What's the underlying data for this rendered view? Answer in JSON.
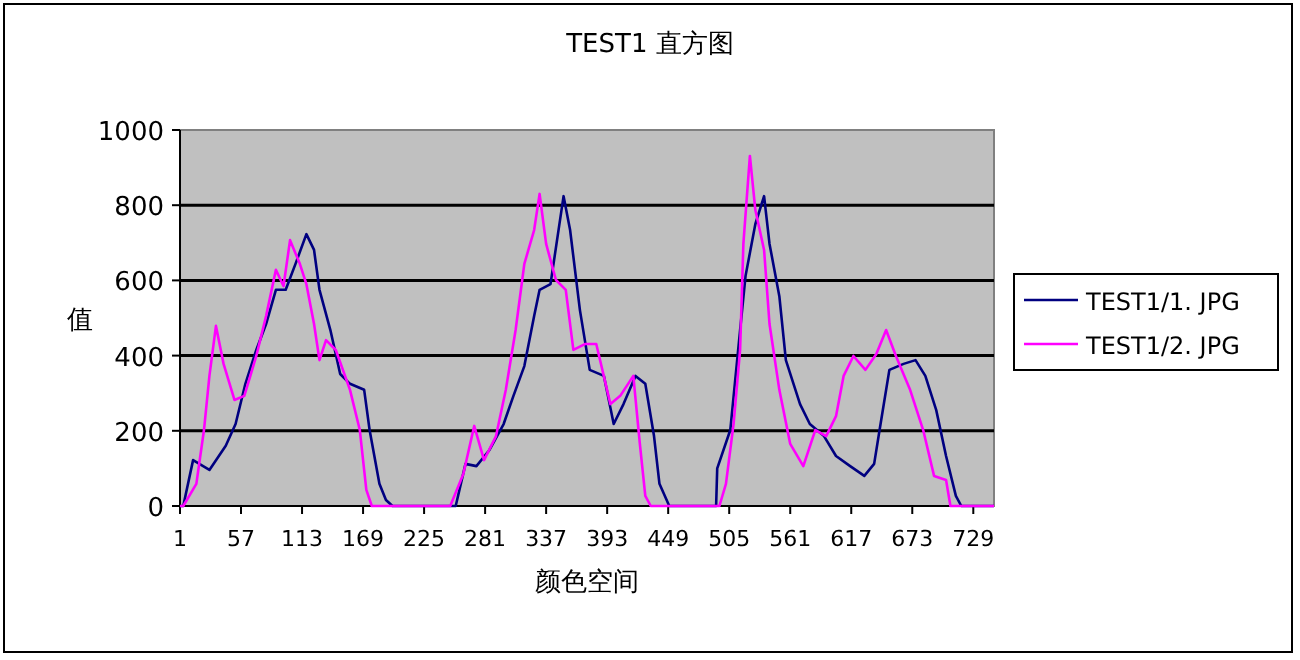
{
  "chart_data": {
    "type": "line",
    "title": "TEST1 直方图",
    "xlabel": "颜色空间",
    "ylabel": "值",
    "xlim": [
      1,
      748
    ],
    "xticks": [
      1,
      57,
      113,
      169,
      225,
      281,
      337,
      393,
      449,
      505,
      561,
      617,
      673,
      729
    ],
    "ylim": [
      0,
      1000
    ],
    "yticks": [
      0,
      200,
      400,
      600,
      800,
      1000
    ],
    "grid": "y",
    "legend": "right",
    "marker": "none",
    "line_style": "solid",
    "series": [
      {
        "name": "TEST1/1. JPG",
        "color": "#000080",
        "x": [
          1,
          4,
          13,
          28,
          43,
          52,
          61,
          71,
          80,
          89,
          98,
          107,
          117,
          124,
          129,
          139,
          148,
          157,
          170,
          175,
          184,
          190,
          196,
          254,
          263,
          273,
          285,
          298,
          307,
          317,
          326,
          331,
          341,
          353,
          359,
          368,
          377,
          390,
          399,
          408,
          419,
          428,
          436,
          441,
          450,
          493,
          494,
          506,
          515,
          520,
          529,
          537,
          542,
          551,
          557,
          570,
          579,
          592,
          603,
          616,
          629,
          638,
          643,
          652,
          665,
          676,
          685,
          695,
          704,
          713,
          718,
          748
        ],
        "values": [
          0,
          0,
          122,
          96,
          160,
          218,
          325,
          415,
          484,
          575,
          575,
          644,
          723,
          681,
          575,
          468,
          351,
          325,
          309,
          202,
          59,
          16,
          0,
          0,
          112,
          106,
          149,
          218,
          293,
          372,
          505,
          575,
          590,
          824,
          734,
          521,
          362,
          346,
          218,
          271,
          346,
          325,
          186,
          59,
          0,
          0,
          100,
          202,
          468,
          612,
          750,
          824,
          697,
          558,
          388,
          271,
          218,
          186,
          133,
          106,
          80,
          112,
          202,
          362,
          378,
          388,
          346,
          255,
          133,
          27,
          0,
          0
        ]
      },
      {
        "name": "TEST1/2. JPG",
        "color": "#ff00ff",
        "x": [
          1,
          4,
          16,
          23,
          28,
          34,
          41,
          51,
          60,
          71,
          80,
          89,
          96,
          102,
          111,
          117,
          124,
          129,
          135,
          144,
          157,
          166,
          172,
          177,
          249,
          261,
          271,
          280,
          291,
          300,
          309,
          317,
          326,
          331,
          337,
          346,
          355,
          362,
          373,
          383,
          396,
          405,
          417,
          423,
          428,
          433,
          496,
          502,
          509,
          515,
          518,
          524,
          529,
          537,
          542,
          551,
          561,
          573,
          584,
          594,
          603,
          610,
          619,
          630,
          640,
          649,
          658,
          671,
          683,
          693,
          704,
          708,
          748
        ],
        "values": [
          0,
          0,
          59,
          202,
          346,
          479,
          378,
          282,
          293,
          399,
          505,
          628,
          585,
          707,
          644,
          590,
          484,
          388,
          441,
          415,
          309,
          202,
          43,
          0,
          0,
          85,
          213,
          122,
          186,
          309,
          468,
          644,
          734,
          830,
          697,
          601,
          575,
          415,
          431,
          431,
          271,
          293,
          346,
          165,
          27,
          0,
          0,
          59,
          218,
          415,
          697,
          931,
          787,
          681,
          484,
          309,
          165,
          106,
          202,
          186,
          239,
          346,
          399,
          362,
          404,
          468,
          399,
          309,
          202,
          80,
          69,
          0,
          0
        ]
      }
    ]
  }
}
